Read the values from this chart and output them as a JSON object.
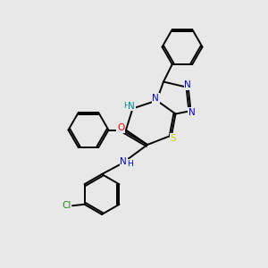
{
  "bg_color": "#e8e8e8",
  "bond_color": "#000000",
  "atom_colors": {
    "N": "#0000cc",
    "NH": "#008888",
    "S": "#cccc00",
    "O": "#ff0000",
    "Cl": "#228822",
    "C": "#000000"
  },
  "lw": 1.4
}
